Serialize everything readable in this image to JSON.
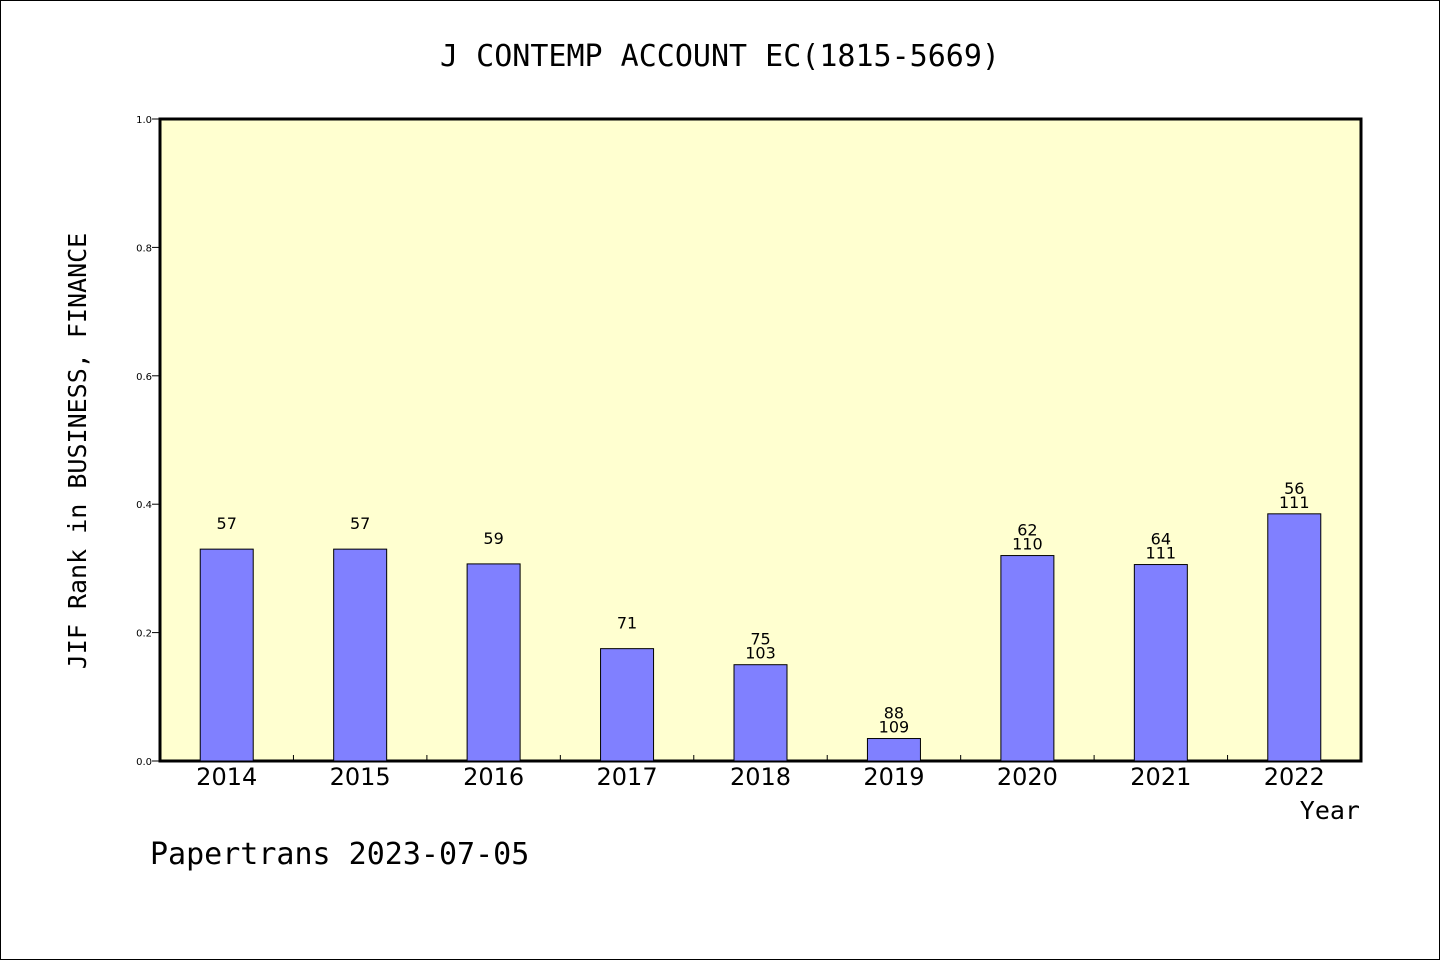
{
  "chart_data": {
    "type": "bar",
    "title": "J CONTEMP ACCOUNT EC(1815-5669)",
    "xlabel": "Year",
    "ylabel": "JIF Rank in BUSINESS, FINANCE",
    "ylim": [
      0,
      1.0
    ],
    "yticks": [
      "0.0",
      "0.2",
      "0.4",
      "0.6",
      "0.8",
      "1.0"
    ],
    "categories": [
      "2014",
      "2015",
      "2016",
      "2017",
      "2018",
      "2019",
      "2020",
      "2021",
      "2022"
    ],
    "values": [
      0.33,
      0.33,
      0.307,
      0.175,
      0.15,
      0.035,
      0.32,
      0.306,
      0.385
    ],
    "labels": [
      [
        "57"
      ],
      [
        "57"
      ],
      [
        "59"
      ],
      [
        "71"
      ],
      [
        "75",
        "103"
      ],
      [
        "88",
        "109"
      ],
      [
        "62",
        "110"
      ],
      [
        "64",
        "111"
      ],
      [
        "56",
        "111"
      ]
    ],
    "bar_color": "#8080ff",
    "plot_background": "#ffffd0",
    "grid": false,
    "legend": "none"
  },
  "footer": {
    "text": "Papertrans 2023-07-05"
  }
}
